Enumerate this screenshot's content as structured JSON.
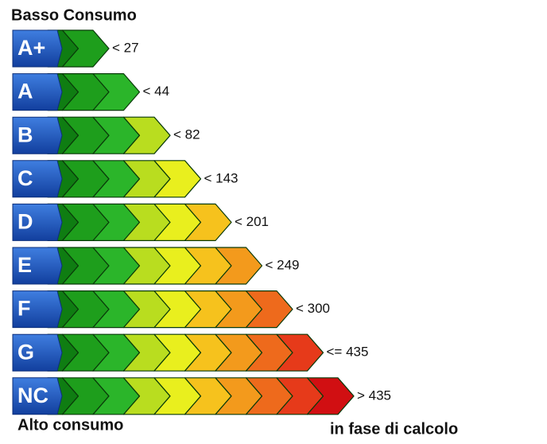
{
  "header": {
    "title": "Basso Consumo"
  },
  "classes": [
    {
      "label": "A+",
      "threshold": "< 27"
    },
    {
      "label": "A",
      "threshold": "< 44"
    },
    {
      "label": "B",
      "threshold": "< 82"
    },
    {
      "label": "C",
      "threshold": "< 143"
    },
    {
      "label": "D",
      "threshold": "< 201"
    },
    {
      "label": "E",
      "threshold": "< 249"
    },
    {
      "label": "F",
      "threshold": "< 300"
    },
    {
      "label": "G",
      "threshold": "<= 435"
    },
    {
      "label": "NC",
      "threshold": "> 435"
    }
  ],
  "footer": {
    "left": "Alto consumo",
    "right": "in fase di calcolo"
  }
}
